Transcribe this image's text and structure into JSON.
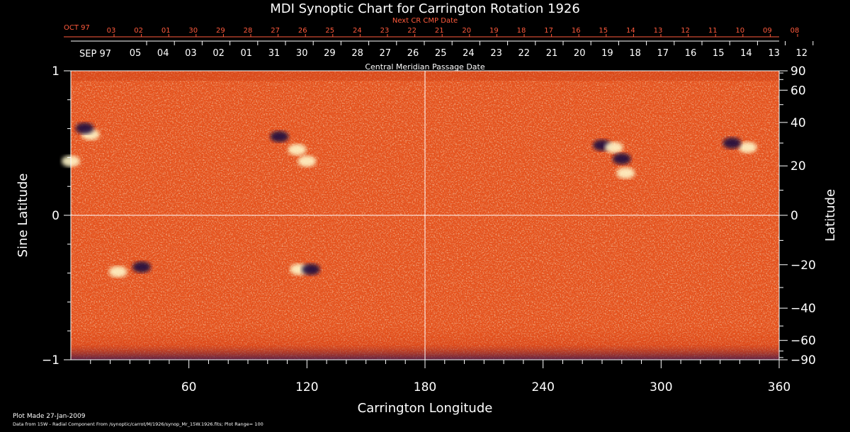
{
  "chart_data": {
    "type": "heatmap",
    "title": "MDI Synoptic Chart for Carrington Rotation 1926",
    "top_axis": {
      "label": "Next CR CMP Date",
      "month_label": "OCT 97",
      "ticks": [
        "03",
        "02",
        "01",
        "30",
        "29",
        "28",
        "27",
        "26",
        "25",
        "24",
        "23",
        "22",
        "21",
        "20",
        "19",
        "18",
        "17",
        "16",
        "15",
        "14",
        "13",
        "12",
        "11",
        "10",
        "09",
        "08"
      ]
    },
    "date_axis": {
      "label": "Central Meridian Passage Date",
      "month_label": "SEP 97",
      "ticks": [
        "05",
        "04",
        "03",
        "02",
        "01",
        "31",
        "30",
        "29",
        "28",
        "27",
        "26",
        "25",
        "24",
        "23",
        "22",
        "21",
        "20",
        "19",
        "18",
        "17",
        "16",
        "15",
        "14",
        "13",
        "12"
      ]
    },
    "xlabel": "Carrington Longitude",
    "xlim": [
      0,
      360
    ],
    "xticks": [
      60,
      120,
      180,
      240,
      300,
      360
    ],
    "ylabel_left": "Sine Latitude",
    "ylim": [
      -1,
      1
    ],
    "yticks_left": [
      "1",
      "0",
      "−1"
    ],
    "ylabel_right": "Latitude",
    "yticks_right": [
      90,
      60,
      40,
      20,
      0,
      -20,
      -40,
      -60,
      -90
    ],
    "colors": {
      "background": "#e8541c",
      "positive": "#fff6c8",
      "negative": "#1a1040",
      "grid": "#ffffff",
      "axis_top": "#ff5a3c"
    },
    "regions": [
      {
        "lon": 0,
        "lat": 22,
        "polarity": "positive"
      },
      {
        "lon": 10,
        "lat": 34,
        "polarity": "positive"
      },
      {
        "lon": 7,
        "lat": 37,
        "polarity": "negative"
      },
      {
        "lon": 106,
        "lat": 33,
        "polarity": "negative"
      },
      {
        "lon": 115,
        "lat": 27,
        "polarity": "positive"
      },
      {
        "lon": 120,
        "lat": 22,
        "polarity": "positive"
      },
      {
        "lon": 270,
        "lat": 29,
        "polarity": "negative"
      },
      {
        "lon": 276,
        "lat": 28,
        "polarity": "positive"
      },
      {
        "lon": 280,
        "lat": 23,
        "polarity": "negative"
      },
      {
        "lon": 282,
        "lat": 17,
        "polarity": "positive"
      },
      {
        "lon": 344,
        "lat": 28,
        "polarity": "positive"
      },
      {
        "lon": 336,
        "lat": 30,
        "polarity": "negative"
      },
      {
        "lon": 24,
        "lat": -23,
        "polarity": "positive"
      },
      {
        "lon": 36,
        "lat": -21,
        "polarity": "negative"
      },
      {
        "lon": 116,
        "lat": -22,
        "polarity": "positive"
      },
      {
        "lon": 122,
        "lat": -22,
        "polarity": "negative"
      }
    ]
  },
  "footer": {
    "plot_made": "Plot Made 27-Jan-2009",
    "data_source": "Data from 15W - Radial Component From /synoptic/carrot/M/1926/synop_Mr_15W.1926.fits; Plot Range= 100"
  }
}
